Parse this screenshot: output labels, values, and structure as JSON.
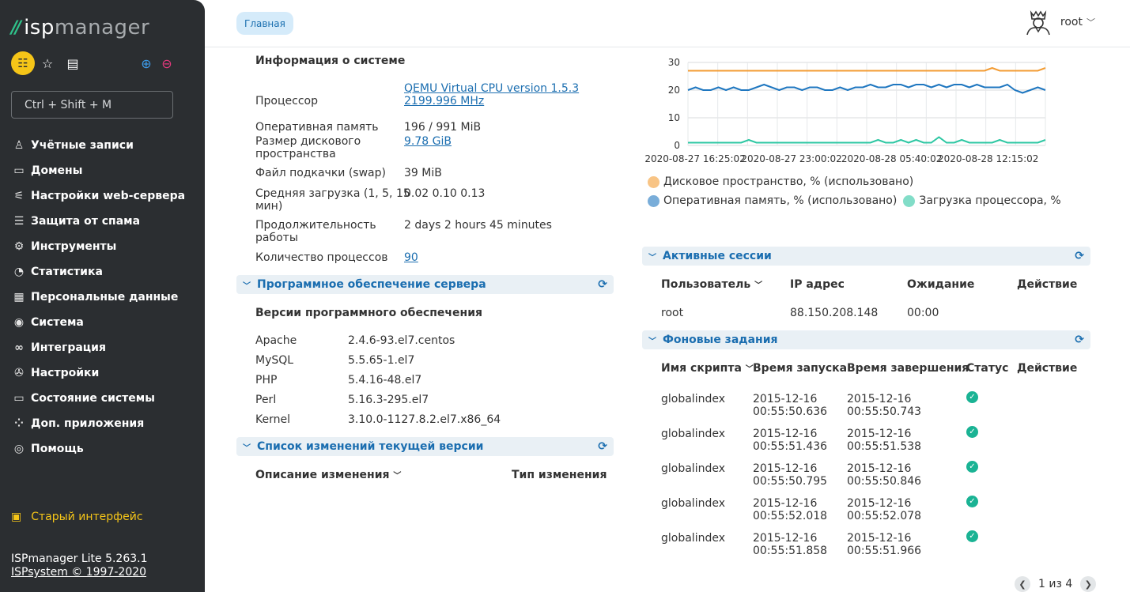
{
  "brand": {
    "mark": "//",
    "name_isp": "isp",
    "name_mgr": "manager"
  },
  "search": {
    "placeholder": "Ctrl + Shift + M"
  },
  "menu": [
    {
      "label": "Учётные записи",
      "icon": "user-icon"
    },
    {
      "label": "Домены",
      "icon": "www-icon"
    },
    {
      "label": "Настройки web-сервера",
      "icon": "sliders-icon"
    },
    {
      "label": "Защита от спама",
      "icon": "spam-shield-icon"
    },
    {
      "label": "Инструменты",
      "icon": "gear-icon"
    },
    {
      "label": "Статистика",
      "icon": "pie-chart-icon"
    },
    {
      "label": "Персональные данные",
      "icon": "document-icon"
    },
    {
      "label": "Система",
      "icon": "os-icon"
    },
    {
      "label": "Интеграция",
      "icon": "link-icon"
    },
    {
      "label": "Настройки",
      "icon": "settings-icon"
    },
    {
      "label": "Состояние системы",
      "icon": "monitor-icon"
    },
    {
      "label": "Доп. приложения",
      "icon": "apps-icon"
    },
    {
      "label": "Помощь",
      "icon": "help-icon"
    }
  ],
  "old_interface": "Старый интерфейс",
  "footer": {
    "version": "ISPmanager Lite 5.263.1",
    "copyright": "ISPsystem © 1997-2020"
  },
  "breadcrumb": "Главная",
  "user": {
    "name": "root"
  },
  "sysinfo": {
    "title": "Информация о системе",
    "rows": [
      {
        "label": "Процессор",
        "value": "QEMU Virtual CPU version 1.5.3",
        "value2": "2199.996 MHz"
      },
      {
        "label": "Оперативная память",
        "value": "196 / 991 MiB"
      },
      {
        "label": "Размер дискового",
        "label2": "пространства",
        "value": "9.78 GiB"
      },
      {
        "label": "Файл подкачки (swap)",
        "value": "39 MiB"
      },
      {
        "label": "Средняя загрузка (1, 5, 15",
        "label2": "мин)",
        "value": "0.02 0.10 0.13"
      },
      {
        "label": "Продолжительность",
        "label2": "работы",
        "value": "2 days 2 hours 45 minutes"
      },
      {
        "label": "Количество процессов",
        "value": "90"
      }
    ]
  },
  "software": {
    "header": "Программное обеспечение сервера",
    "title": "Версии программного обеспечения",
    "rows": [
      {
        "name": "Apache",
        "version": "2.4.6-93.el7.centos"
      },
      {
        "name": "MySQL",
        "version": "5.5.65-1.el7"
      },
      {
        "name": "PHP",
        "version": "5.4.16-48.el7"
      },
      {
        "name": "Perl",
        "version": "5.16.3-295.el7"
      },
      {
        "name": "Kernel",
        "version": "3.10.0-1127.8.2.el7.x86_64"
      }
    ]
  },
  "changes": {
    "header": "Список изменений текущей версии",
    "col_desc": "Описание изменения",
    "col_type": "Тип изменения"
  },
  "chart_data": {
    "type": "line",
    "x_ticks": [
      "2020-08-27 16:25:02",
      "2020-08-27 23:00:02",
      "2020-08-28 05:40:02",
      "2020-08-28 12:15:02"
    ],
    "y_ticks": [
      0,
      10,
      20,
      30
    ],
    "ylim": [
      0,
      30
    ],
    "grid": true,
    "legend_position": "bottom",
    "series": [
      {
        "name": "Дисковое пространство, % (использовано)",
        "color": "#f39c34",
        "values": [
          27,
          27,
          27,
          27,
          27,
          27,
          27,
          27,
          27,
          27,
          27,
          27,
          27,
          27,
          27,
          27,
          27,
          27,
          27,
          27,
          27,
          27,
          27,
          27,
          27,
          27,
          27,
          27,
          27,
          27,
          27,
          27,
          27,
          27,
          27,
          27,
          27,
          27,
          27,
          27,
          28,
          27,
          27,
          27,
          27,
          27,
          27,
          28
        ]
      },
      {
        "name": "Оперативная память, % (использовано)",
        "color": "#1f77c0",
        "values": [
          20,
          21,
          20,
          20,
          21,
          20,
          21,
          20,
          20,
          21,
          22,
          21,
          20,
          21,
          21,
          20,
          21,
          21,
          20,
          20,
          21,
          20,
          21,
          21,
          22,
          21,
          21,
          22,
          22,
          21,
          22,
          22,
          21,
          22,
          21,
          22,
          22,
          21,
          22,
          21,
          21,
          21,
          22,
          20,
          19,
          20,
          21,
          20
        ]
      },
      {
        "name": "Загрузка процессора, %",
        "color": "#2ec7a3",
        "values": [
          1,
          1,
          1,
          1,
          1,
          1,
          1,
          1,
          2,
          1,
          1,
          1,
          1,
          1,
          1,
          1,
          1,
          1,
          1,
          1,
          1,
          1,
          1,
          1,
          1,
          2,
          1,
          1,
          2,
          1,
          2,
          1,
          1,
          3,
          1,
          1,
          2,
          1,
          1,
          1,
          1,
          2,
          1,
          1,
          1,
          1,
          1,
          2
        ]
      }
    ]
  },
  "sessions": {
    "header": "Активные сессии",
    "columns": [
      "Пользователь",
      "IP адрес",
      "Ожидание",
      "Действие"
    ],
    "rows": [
      {
        "user": "root",
        "ip": "88.150.208.148",
        "idle": "00:00"
      }
    ]
  },
  "jobs": {
    "header": "Фоновые задания",
    "columns": [
      "Имя скрипта",
      "Время запуска",
      "Время завершения",
      "Статус",
      "Действие"
    ],
    "rows": [
      {
        "name": "globalindex",
        "start_d": "2015-12-16",
        "start_t": "00:55:50.636",
        "end_d": "2015-12-16",
        "end_t": "00:55:50.743"
      },
      {
        "name": "globalindex",
        "start_d": "2015-12-16",
        "start_t": "00:55:51.436",
        "end_d": "2015-12-16",
        "end_t": "00:55:51.538"
      },
      {
        "name": "globalindex",
        "start_d": "2015-12-16",
        "start_t": "00:55:50.795",
        "end_d": "2015-12-16",
        "end_t": "00:55:50.846"
      },
      {
        "name": "globalindex",
        "start_d": "2015-12-16",
        "start_t": "00:55:52.018",
        "end_d": "2015-12-16",
        "end_t": "00:55:52.078"
      },
      {
        "name": "globalindex",
        "start_d": "2015-12-16",
        "start_t": "00:55:51.858",
        "end_d": "2015-12-16",
        "end_t": "00:55:51.966"
      }
    ]
  },
  "pager": {
    "text": "1 из 4"
  }
}
